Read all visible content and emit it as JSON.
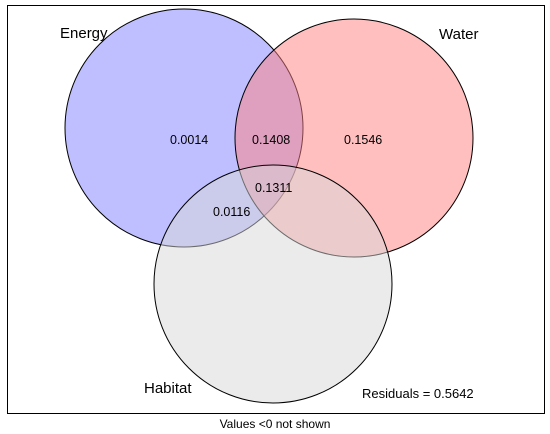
{
  "diagram": {
    "type": "venn",
    "sets": [
      {
        "name": "Energy",
        "color": "#8080ff"
      },
      {
        "name": "Water",
        "color": "#ff8080"
      },
      {
        "name": "Habitat",
        "color": "#d8d8d8"
      }
    ],
    "regions": [
      {
        "key": "energy_only",
        "sets": [
          "Energy"
        ],
        "value": "0.0014"
      },
      {
        "key": "energy_water",
        "sets": [
          "Energy",
          "Water"
        ],
        "value": "0.1408"
      },
      {
        "key": "water_only",
        "sets": [
          "Water"
        ],
        "value": "0.1546"
      },
      {
        "key": "energy_water_habitat",
        "sets": [
          "Energy",
          "Water",
          "Habitat"
        ],
        "value": "0.1311"
      },
      {
        "key": "energy_habitat",
        "sets": [
          "Energy",
          "Habitat"
        ],
        "value": "0.0116"
      }
    ],
    "residuals_label": "Residuals = 0.5642",
    "footer_note": "Values <0 not shown"
  }
}
